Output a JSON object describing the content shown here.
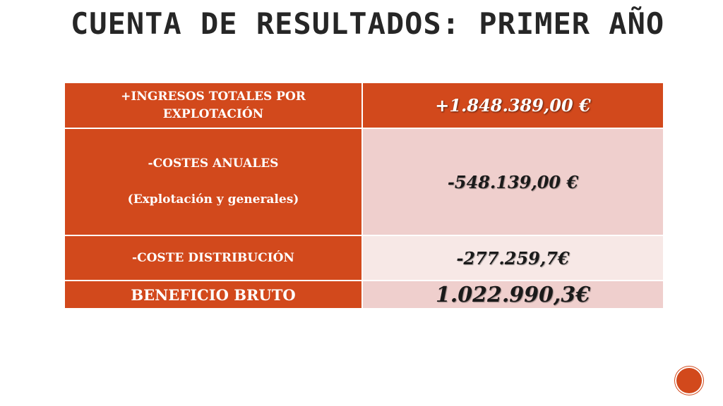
{
  "title": "CUENTA DE RESULTADOS: PRIMER AÑO",
  "rows": [
    {
      "label_lines": [
        "+INGRESOS TOTALES POR",
        "EXPLOTACIÓN"
      ],
      "value": "+1.848.389,00 €"
    },
    {
      "label_lines": [
        "-COSTES ANUALES",
        "(Explotación y generales)"
      ],
      "value": "-548.139,00 €"
    },
    {
      "label_lines": [
        "-COSTE DISTRIBUCIÓN"
      ],
      "value": "-277.259,7€"
    },
    {
      "label_lines": [
        "BENEFICIO BRUTO"
      ],
      "value": "1.022.990,3€"
    }
  ],
  "colors": {
    "header_orange": "#d2491c",
    "pink_dark": "#efcfcd",
    "pink_light": "#f7e8e6",
    "title_text": "#262626"
  }
}
